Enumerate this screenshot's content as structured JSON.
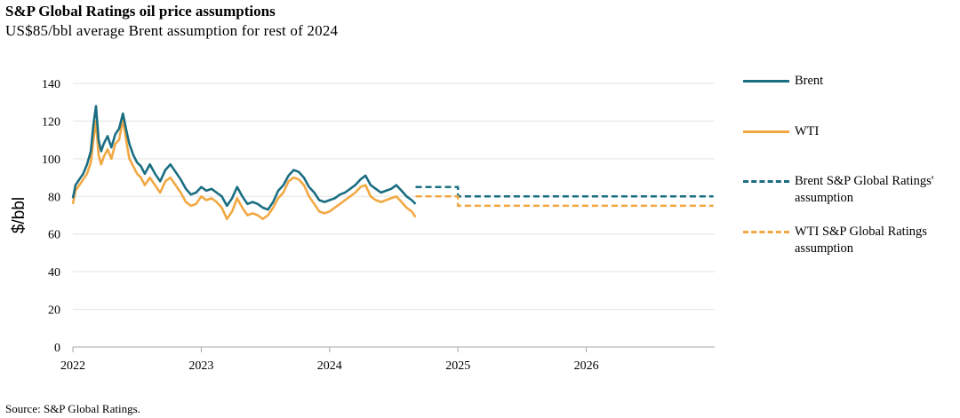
{
  "title": "S&P Global Ratings oil price assumptions",
  "subtitle": "US$85/bbl average Brent assumption for rest of 2024",
  "source": "Source: S&P Global Ratings.",
  "colors": {
    "brent": "#1a6e82",
    "wti": "#f2a842",
    "axis": "#a6a6a6",
    "grid": "#e3e3e3"
  },
  "legend": [
    {
      "label": "Brent",
      "series": "brent",
      "style": "solid"
    },
    {
      "label": "WTI",
      "series": "wti",
      "style": "solid"
    },
    {
      "label": "Brent S&P Global Ratings' assumption",
      "series": "brent",
      "style": "dashed"
    },
    {
      "label": "WTI S&P Global Ratings assumption",
      "series": "wti",
      "style": "dashed"
    }
  ],
  "chart_data": {
    "type": "line",
    "ylabel": "$/bbl",
    "xlabel": "",
    "ylim": [
      0,
      140
    ],
    "yticks": [
      0,
      20,
      40,
      60,
      80,
      100,
      120,
      140
    ],
    "xlim": [
      2022,
      2027.0
    ],
    "xticks": [
      2022,
      2023,
      2024,
      2025,
      2026
    ],
    "grid": "horizontal",
    "legend_position": "right",
    "series": [
      {
        "name": "Brent",
        "style": "solid",
        "x": [
          2022.0,
          2022.02,
          2022.05,
          2022.08,
          2022.11,
          2022.14,
          2022.16,
          2022.18,
          2022.2,
          2022.22,
          2022.24,
          2022.27,
          2022.3,
          2022.33,
          2022.36,
          2022.39,
          2022.42,
          2022.44,
          2022.47,
          2022.5,
          2022.53,
          2022.56,
          2022.6,
          2022.64,
          2022.68,
          2022.72,
          2022.76,
          2022.8,
          2022.84,
          2022.88,
          2022.92,
          2022.96,
          2023.0,
          2023.04,
          2023.08,
          2023.12,
          2023.16,
          2023.2,
          2023.24,
          2023.28,
          2023.32,
          2023.36,
          2023.4,
          2023.44,
          2023.48,
          2023.52,
          2023.56,
          2023.6,
          2023.64,
          2023.68,
          2023.72,
          2023.76,
          2023.8,
          2023.84,
          2023.88,
          2023.92,
          2023.96,
          2024.0,
          2024.04,
          2024.08,
          2024.12,
          2024.16,
          2024.2,
          2024.24,
          2024.28,
          2024.32,
          2024.36,
          2024.4,
          2024.44,
          2024.48,
          2024.52,
          2024.56,
          2024.6,
          2024.64,
          2024.67
        ],
        "values": [
          79,
          86,
          89,
          92,
          97,
          104,
          118,
          128,
          110,
          104,
          108,
          112,
          106,
          113,
          116,
          124,
          114,
          108,
          102,
          98,
          96,
          92,
          97,
          92,
          88,
          94,
          97,
          93,
          89,
          84,
          81,
          82,
          85,
          83,
          84,
          82,
          80,
          75,
          79,
          85,
          80,
          76,
          77,
          76,
          74,
          73,
          77,
          83,
          86,
          91,
          94,
          93,
          90,
          85,
          82,
          78,
          77,
          78,
          79,
          81,
          82,
          84,
          86,
          89,
          91,
          86,
          84,
          82,
          83,
          84,
          86,
          83,
          80,
          78,
          76
        ]
      },
      {
        "name": "WTI",
        "style": "solid",
        "x": [
          2022.0,
          2022.02,
          2022.05,
          2022.08,
          2022.11,
          2022.14,
          2022.16,
          2022.18,
          2022.2,
          2022.22,
          2022.24,
          2022.27,
          2022.3,
          2022.33,
          2022.36,
          2022.39,
          2022.42,
          2022.44,
          2022.47,
          2022.5,
          2022.53,
          2022.56,
          2022.6,
          2022.64,
          2022.68,
          2022.72,
          2022.76,
          2022.8,
          2022.84,
          2022.88,
          2022.92,
          2022.96,
          2023.0,
          2023.04,
          2023.08,
          2023.12,
          2023.16,
          2023.2,
          2023.24,
          2023.28,
          2023.32,
          2023.36,
          2023.4,
          2023.44,
          2023.48,
          2023.52,
          2023.56,
          2023.6,
          2023.64,
          2023.68,
          2023.72,
          2023.76,
          2023.8,
          2023.84,
          2023.88,
          2023.92,
          2023.96,
          2024.0,
          2024.04,
          2024.08,
          2024.12,
          2024.16,
          2024.2,
          2024.24,
          2024.28,
          2024.32,
          2024.36,
          2024.4,
          2024.44,
          2024.48,
          2024.52,
          2024.56,
          2024.6,
          2024.64,
          2024.67
        ],
        "values": [
          76,
          83,
          86,
          89,
          92,
          98,
          110,
          120,
          102,
          97,
          101,
          105,
          100,
          108,
          110,
          121,
          108,
          100,
          96,
          92,
          90,
          86,
          90,
          86,
          82,
          88,
          90,
          86,
          82,
          77,
          75,
          76,
          80,
          78,
          79,
          77,
          74,
          68,
          72,
          79,
          74,
          70,
          71,
          70,
          68,
          70,
          74,
          79,
          82,
          88,
          90,
          89,
          86,
          80,
          76,
          72,
          71,
          72,
          74,
          76,
          78,
          80,
          82,
          85,
          86,
          80,
          78,
          77,
          78,
          79,
          80,
          77,
          74,
          72,
          69
        ]
      },
      {
        "name": "Brent S&P Global Ratings' assumption",
        "style": "dashed",
        "x": [
          2024.67,
          2025.0,
          2025.0,
          2026.99
        ],
        "values": [
          85,
          85,
          80,
          80
        ]
      },
      {
        "name": "WTI S&P Global Ratings assumption",
        "style": "dashed",
        "x": [
          2024.67,
          2025.0,
          2025.0,
          2026.99
        ],
        "values": [
          80,
          80,
          75,
          75
        ]
      }
    ]
  }
}
